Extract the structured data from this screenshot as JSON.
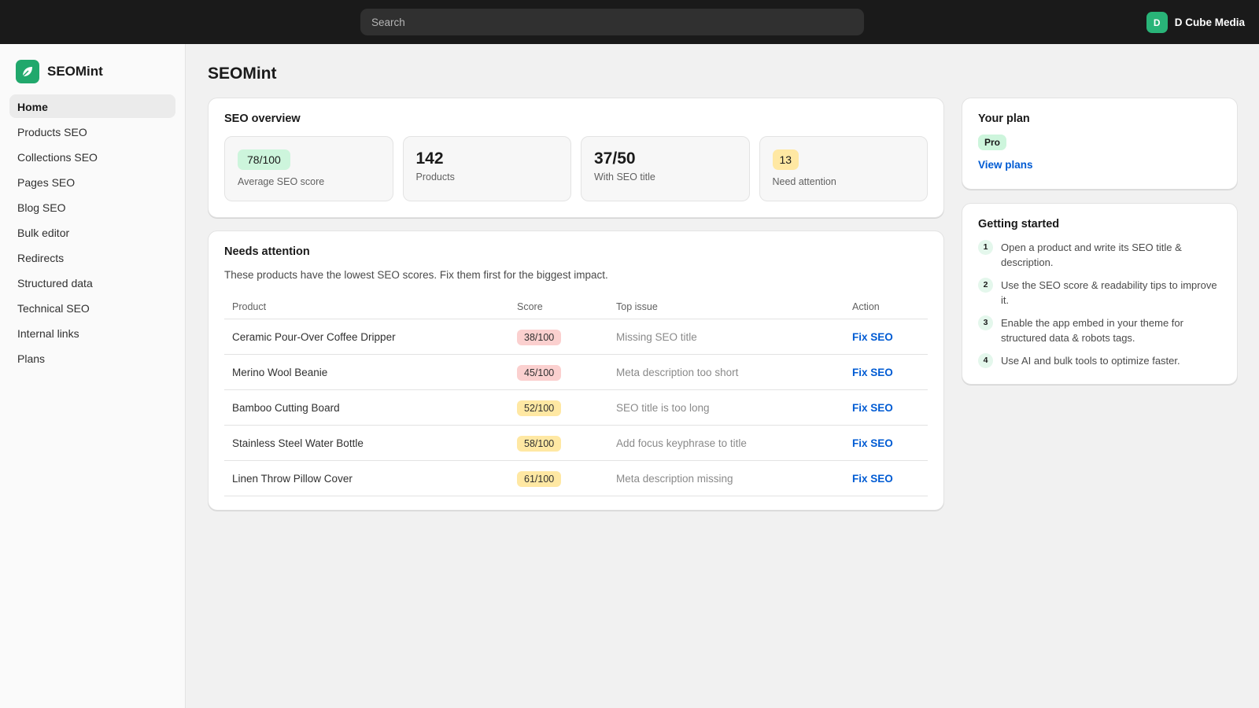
{
  "topbar": {
    "search_placeholder": "Search",
    "avatar": "D",
    "store_name": "D Cube Media"
  },
  "sidebar": {
    "app_name": "SEOMint",
    "nav": [
      "Home",
      "Products SEO",
      "Collections SEO",
      "Pages SEO",
      "Blog SEO",
      "Bulk editor",
      "Redirects",
      "Structured data",
      "Technical SEO",
      "Internal links",
      "Plans"
    ]
  },
  "page_title": "SEOMint",
  "overview": {
    "title": "SEO overview",
    "stats": [
      {
        "value": "78/100",
        "label": "Average SEO score"
      },
      {
        "value": "142",
        "label": "Products"
      },
      {
        "value": "37/50",
        "label": "With SEO title"
      },
      {
        "value": "13",
        "label": "Need attention"
      }
    ]
  },
  "attention": {
    "title": "Needs attention",
    "description": "These products have the lowest SEO scores. Fix them first for the biggest impact.",
    "columns": [
      "Product",
      "Score",
      "Top issue",
      "Action"
    ],
    "rows": [
      [
        "Ceramic Pour-Over Coffee Dripper",
        "38/100",
        "Missing SEO title",
        "Fix SEO"
      ],
      [
        "Merino Wool Beanie",
        "45/100",
        "Meta description too short",
        "Fix SEO"
      ],
      [
        "Bamboo Cutting Board",
        "52/100",
        "SEO title is too long",
        "Fix SEO"
      ],
      [
        "Stainless Steel Water Bottle",
        "58/100",
        "Add focus keyphrase to title",
        "Fix SEO"
      ],
      [
        "Linen Throw Pillow Cover",
        "61/100",
        "Meta description missing",
        "Fix SEO"
      ]
    ]
  },
  "plan": {
    "title": "Your plan",
    "badge": "Pro",
    "link": "View plans"
  },
  "getting_started": {
    "title": "Getting started",
    "steps": [
      {
        "number": "1",
        "text": "Open a product and write its SEO title & description."
      },
      {
        "number": "2",
        "text": "Use the SEO score & readability tips to improve it."
      },
      {
        "number": "3",
        "text": "Enable the app embed in your theme for structured data & robots tags."
      },
      {
        "number": "4",
        "text": "Use AI and bulk tools to optimize faster."
      }
    ]
  }
}
